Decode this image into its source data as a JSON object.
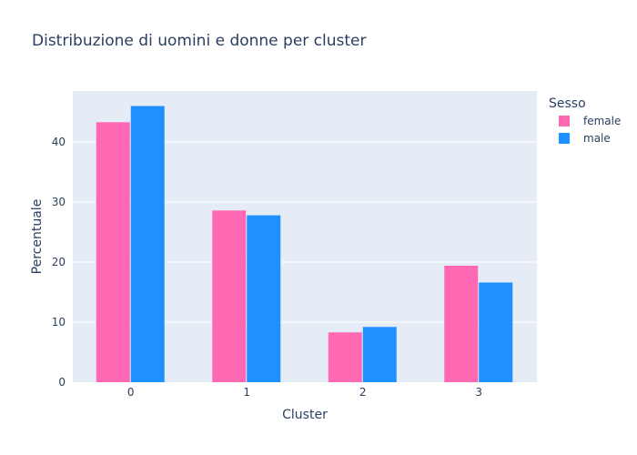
{
  "chart_data": {
    "type": "bar",
    "title": "Distribuzione di uomini e donne per cluster",
    "xlabel": "Cluster",
    "ylabel": "Percentuale",
    "categories": [
      "0",
      "1",
      "2",
      "3"
    ],
    "ylim": [
      0,
      48.5
    ],
    "yticks": [
      0,
      10,
      20,
      30,
      40
    ],
    "grid": true,
    "legend": {
      "title": "Sesso",
      "placement": "right"
    },
    "series": [
      {
        "name": "female",
        "color": "#ff69b4",
        "values": [
          43.3,
          28.6,
          8.3,
          19.4
        ]
      },
      {
        "name": "male",
        "color": "#1e90ff",
        "values": [
          46.0,
          27.8,
          9.2,
          16.6
        ]
      }
    ]
  }
}
